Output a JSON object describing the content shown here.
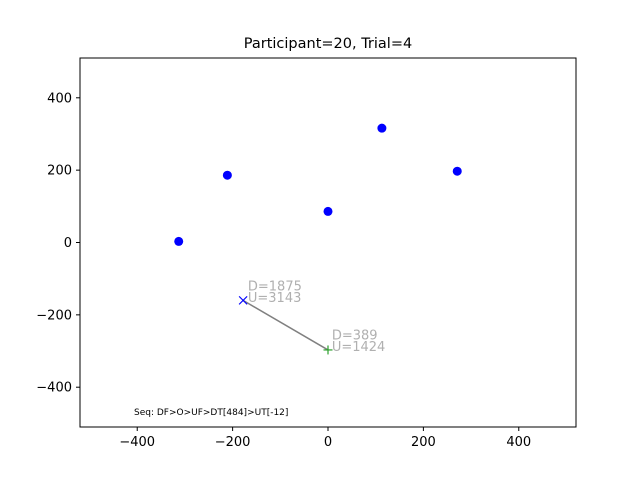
{
  "chart_data": {
    "type": "scatter",
    "title": "Participant=20, Trial=4",
    "xlabel": "",
    "ylabel": "",
    "xlim": [
      -520,
      520
    ],
    "ylim": [
      -510,
      510
    ],
    "xticks": [
      -400,
      -200,
      0,
      200,
      400
    ],
    "yticks": [
      -400,
      -200,
      0,
      200,
      400
    ],
    "xtick_labels": [
      "−400",
      "−200",
      "0",
      "200",
      "400"
    ],
    "ytick_labels": [
      "−400",
      "−200",
      "0",
      "200",
      "400"
    ],
    "grid": false,
    "legend": "none",
    "targets": {
      "color": "#0000ff",
      "x": [
        -313,
        -211,
        0,
        113,
        271
      ],
      "y": [
        3,
        186,
        86,
        316,
        197
      ]
    },
    "touch_path": {
      "color": "#808080",
      "x": [
        -178,
        0
      ],
      "y": [
        -160,
        -297
      ]
    },
    "down_marker": {
      "color": "#0000ff",
      "symbol": "x",
      "x": -178,
      "y": -160
    },
    "up_marker": {
      "color": "#2ca02c",
      "symbol": "+",
      "x": 0,
      "y": -297
    },
    "annotations": [
      {
        "text": "D=1875",
        "x": -168,
        "y": -132,
        "color": "#b0b0b0"
      },
      {
        "text": "U=3143",
        "x": -168,
        "y": -165,
        "color": "#b0b0b0"
      },
      {
        "text": "D=389",
        "x": 8,
        "y": -268,
        "color": "#b0b0b0"
      },
      {
        "text": "U=1424",
        "x": 8,
        "y": -300,
        "color": "#b0b0b0"
      }
    ],
    "footer_text": "Seq: DF>O>UF>DT[484]>UT[-12]"
  }
}
